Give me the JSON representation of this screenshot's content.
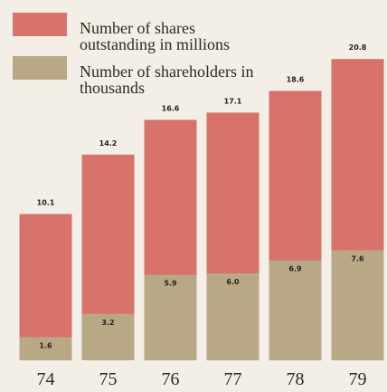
{
  "chart_data": {
    "type": "bar",
    "categories": [
      "74",
      "75",
      "76",
      "77",
      "78",
      "79"
    ],
    "series": [
      {
        "name": "Number of shares outstanding in millions",
        "color": "#d8736c",
        "values": [
          10.1,
          14.2,
          16.6,
          17.1,
          18.6,
          20.8
        ]
      },
      {
        "name": "Number of shareholders in thousands",
        "color": "#b9a886",
        "values": [
          1.6,
          3.2,
          5.9,
          6.0,
          6.9,
          7.6
        ],
        "value_labels": [
          "1.6",
          "3.2",
          "5.9",
          "6.0",
          "6.9",
          "7.6"
        ]
      }
    ],
    "ylim": [
      0,
      21
    ]
  }
}
